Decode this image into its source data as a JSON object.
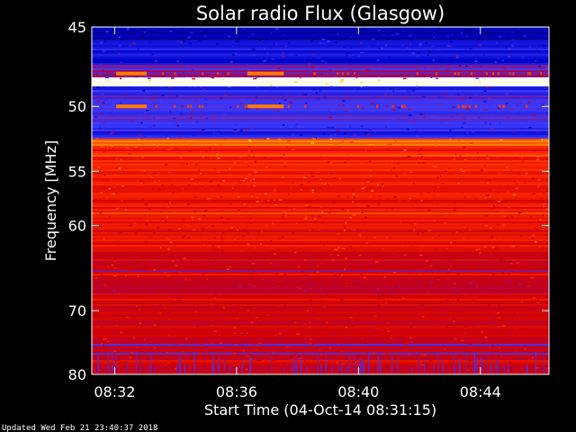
{
  "chart_data": {
    "type": "heatmap",
    "title": "Solar radio Flux (Glasgow)",
    "ylabel": "Frequency [MHz]",
    "xlabel": "Start Time (04-Oct-14 08:31:15)",
    "x_ticks": [
      "08:32",
      "08:36",
      "08:40",
      "08:44"
    ],
    "x_tick_minutes": [
      0.75,
      4.75,
      8.75,
      12.75
    ],
    "xlim_minutes": [
      0,
      15
    ],
    "y_ticks": [
      45,
      50,
      55,
      60,
      70,
      80
    ],
    "ylim": [
      45,
      80
    ],
    "y_scale": "reciprocal",
    "colormap": [
      "#00003a",
      "#0000c8",
      "#3a3aff",
      "#b4003c",
      "#d20000",
      "#ff2a00",
      "#ff7a00",
      "#ffd000",
      "#ffffff"
    ],
    "frequency_bands": [
      {
        "f_low": 45.0,
        "f_high": 45.8,
        "level": 0.1
      },
      {
        "f_low": 45.8,
        "f_high": 47.3,
        "level": 0.18
      },
      {
        "f_low": 47.3,
        "f_high": 48.1,
        "level": 0.3
      },
      {
        "f_low": 48.1,
        "f_high": 48.6,
        "level": 1.0
      },
      {
        "f_low": 48.6,
        "f_high": 49.3,
        "level": 0.22
      },
      {
        "f_low": 49.3,
        "f_high": 51.0,
        "level": 0.26
      },
      {
        "f_low": 51.0,
        "f_high": 52.3,
        "level": 0.22
      },
      {
        "f_low": 52.3,
        "f_high": 52.9,
        "level": 0.72
      },
      {
        "f_low": 52.9,
        "f_high": 57.0,
        "level": 0.58
      },
      {
        "f_low": 57.0,
        "f_high": 59.5,
        "level": 0.55
      },
      {
        "f_low": 59.5,
        "f_high": 62.5,
        "level": 0.54
      },
      {
        "f_low": 62.5,
        "f_high": 66.0,
        "level": 0.5
      },
      {
        "f_low": 66.0,
        "f_high": 68.0,
        "level": 0.42
      },
      {
        "f_low": 68.0,
        "f_high": 74.0,
        "level": 0.48
      },
      {
        "f_low": 74.0,
        "f_high": 80.0,
        "level": 0.46
      }
    ],
    "bursts": [
      {
        "t_start": 0.8,
        "t_end": 1.8,
        "f": 47.8,
        "level": 0.75
      },
      {
        "t_start": 0.8,
        "t_end": 1.8,
        "f": 50.0,
        "level": 0.75
      },
      {
        "t_start": 5.1,
        "t_end": 6.3,
        "f": 47.8,
        "level": 0.75
      },
      {
        "t_start": 5.1,
        "t_end": 6.3,
        "f": 50.0,
        "level": 0.75
      }
    ]
  },
  "footer": {
    "updated": "Updated Wed Feb 21 23:40:37 2018"
  },
  "colors": {
    "background": "#000000",
    "axes": "#ffffff"
  }
}
